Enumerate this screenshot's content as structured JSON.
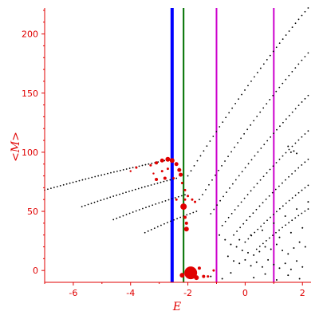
{
  "chart_data": {
    "type": "scatter",
    "title": "",
    "xlabel": "E",
    "ylabel": "<M>",
    "xlim": [
      -7,
      2.3
    ],
    "ylim": [
      -10,
      222
    ],
    "grid": false,
    "x_ticks": [
      -6,
      -4,
      -2,
      0,
      2
    ],
    "y_ticks": [
      0,
      50,
      100,
      150,
      200
    ],
    "x_tick_labels": [
      "-6",
      "-4",
      "-2",
      "0",
      "2"
    ],
    "y_tick_labels": [
      "0",
      "50",
      "100",
      "150",
      "200"
    ],
    "colors": {
      "axis": "#e00000",
      "black_points": "#000000",
      "red_points": "#e00000",
      "line_blue": "#0000ff",
      "line_green": "#007000",
      "line_magenta": "#cc00cc"
    },
    "vertical_lines": [
      {
        "x": -2.55,
        "color": "#0000ff",
        "width": "thick"
      },
      {
        "x": -2.15,
        "color": "#007000",
        "width": "thin"
      },
      {
        "x": -1.0,
        "color": "#cc00cc",
        "width": "thin"
      },
      {
        "x": 1.0,
        "color": "#cc00cc",
        "width": "thin"
      }
    ],
    "black_branches": [
      {
        "x_start": -7.0,
        "y_start": 68,
        "x_end": -2.6,
        "y_end": 94
      },
      {
        "x_start": -5.7,
        "y_start": 54,
        "x_end": -2.4,
        "y_end": 78
      },
      {
        "x_start": -4.6,
        "y_start": 43,
        "x_end": -2.1,
        "y_end": 64
      },
      {
        "x_start": -3.5,
        "y_start": 32,
        "x_end": -1.7,
        "y_end": 50
      },
      {
        "x_start": -2.0,
        "y_start": 80,
        "x_end": 2.2,
        "y_end": 222
      },
      {
        "x_start": -1.6,
        "y_start": 60,
        "x_end": 2.2,
        "y_end": 184
      },
      {
        "x_start": -1.2,
        "y_start": 48,
        "x_end": 2.2,
        "y_end": 148
      },
      {
        "x_start": -0.8,
        "y_start": 38,
        "x_end": 2.2,
        "y_end": 118
      },
      {
        "x_start": -0.4,
        "y_start": 30,
        "x_end": 2.2,
        "y_end": 94
      },
      {
        "x_start": 0.0,
        "y_start": 24,
        "x_end": 2.2,
        "y_end": 72
      },
      {
        "x_start": 0.4,
        "y_start": 18,
        "x_end": 2.2,
        "y_end": 52
      }
    ],
    "red_points": [
      {
        "x": -3.3,
        "y": 89,
        "size": 1.5
      },
      {
        "x": -3.1,
        "y": 91,
        "size": 2
      },
      {
        "x": -2.9,
        "y": 93,
        "size": 2.5
      },
      {
        "x": -2.7,
        "y": 94,
        "size": 3
      },
      {
        "x": -2.55,
        "y": 93,
        "size": 3
      },
      {
        "x": -2.4,
        "y": 90,
        "size": 2.5
      },
      {
        "x": -2.3,
        "y": 85,
        "size": 2.5
      },
      {
        "x": -2.25,
        "y": 81,
        "size": 2.5
      },
      {
        "x": -2.7,
        "y": 86,
        "size": 1.5
      },
      {
        "x": -2.9,
        "y": 84,
        "size": 1.5
      },
      {
        "x": -3.2,
        "y": 82,
        "size": 1.2
      },
      {
        "x": -3.8,
        "y": 87,
        "size": 1.5
      },
      {
        "x": -4.0,
        "y": 84,
        "size": 1.2
      },
      {
        "x": -2.8,
        "y": 78,
        "size": 2
      },
      {
        "x": -3.1,
        "y": 77,
        "size": 2
      },
      {
        "x": -2.5,
        "y": 78,
        "size": 1.5
      },
      {
        "x": -2.2,
        "y": 74,
        "size": 1.5
      },
      {
        "x": -2.1,
        "y": 68,
        "size": 1.5
      },
      {
        "x": -2.0,
        "y": 63,
        "size": 1.5
      },
      {
        "x": -1.85,
        "y": 60,
        "size": 1.5
      },
      {
        "x": -1.75,
        "y": 58,
        "size": 1.5
      },
      {
        "x": -2.4,
        "y": 60,
        "size": 1.5
      },
      {
        "x": -2.1,
        "y": 60,
        "size": 1.5
      },
      {
        "x": -2.15,
        "y": 54,
        "size": 4
      },
      {
        "x": -2.1,
        "y": 45,
        "size": 2
      },
      {
        "x": -2.05,
        "y": 40,
        "size": 2
      },
      {
        "x": -2.05,
        "y": 35,
        "size": 3
      },
      {
        "x": -1.9,
        "y": -2,
        "size": 8
      },
      {
        "x": -2.2,
        "y": -4,
        "size": 3
      },
      {
        "x": -1.7,
        "y": -6,
        "size": 3
      },
      {
        "x": -1.45,
        "y": -5,
        "size": 2
      },
      {
        "x": -1.6,
        "y": 2,
        "size": 2
      },
      {
        "x": -1.3,
        "y": -5,
        "size": 1.5
      },
      {
        "x": -1.1,
        "y": 0,
        "size": 1.5
      }
    ],
    "black_scatter": [
      {
        "x": -0.9,
        "y": 30
      },
      {
        "x": -0.7,
        "y": 26
      },
      {
        "x": -0.5,
        "y": 22
      },
      {
        "x": -0.3,
        "y": 20
      },
      {
        "x": -0.1,
        "y": 17
      },
      {
        "x": 0.1,
        "y": 15
      },
      {
        "x": 0.3,
        "y": 13
      },
      {
        "x": 0.5,
        "y": 16
      },
      {
        "x": 0.7,
        "y": 20
      },
      {
        "x": 0.9,
        "y": 18
      },
      {
        "x": 1.1,
        "y": 22
      },
      {
        "x": 1.3,
        "y": 17
      },
      {
        "x": 1.5,
        "y": 14
      },
      {
        "x": 1.7,
        "y": 19
      },
      {
        "x": 1.9,
        "y": 24
      },
      {
        "x": 2.1,
        "y": 20
      },
      {
        "x": -0.6,
        "y": 12
      },
      {
        "x": -0.4,
        "y": 8
      },
      {
        "x": -0.2,
        "y": 6
      },
      {
        "x": 0.0,
        "y": 9
      },
      {
        "x": 0.2,
        "y": 4
      },
      {
        "x": 0.4,
        "y": 7
      },
      {
        "x": 0.6,
        "y": 3
      },
      {
        "x": 0.8,
        "y": 9
      },
      {
        "x": 1.0,
        "y": 5
      },
      {
        "x": 1.2,
        "y": 2
      },
      {
        "x": 1.4,
        "y": 6
      },
      {
        "x": 1.6,
        "y": 1
      },
      {
        "x": 1.8,
        "y": 8
      },
      {
        "x": 2.0,
        "y": 3
      },
      {
        "x": -1.2,
        "y": -5
      },
      {
        "x": -0.8,
        "y": -7
      },
      {
        "x": -0.5,
        "y": -2
      },
      {
        "x": 0.3,
        "y": -6
      },
      {
        "x": 0.7,
        "y": -3
      },
      {
        "x": 1.1,
        "y": -8
      },
      {
        "x": 1.5,
        "y": -4
      },
      {
        "x": 1.9,
        "y": -7
      },
      {
        "x": -0.2,
        "y": 26
      },
      {
        "x": 0.2,
        "y": 30
      },
      {
        "x": 0.6,
        "y": 34
      },
      {
        "x": 1.0,
        "y": 40
      },
      {
        "x": 1.4,
        "y": 46
      },
      {
        "x": 1.8,
        "y": 52
      },
      {
        "x": 2.2,
        "y": 58
      },
      {
        "x": 1.2,
        "y": 28
      },
      {
        "x": 1.6,
        "y": 32
      },
      {
        "x": 2.0,
        "y": 36
      },
      {
        "x": 1.5,
        "y": 105
      },
      {
        "x": 1.6,
        "y": 100
      },
      {
        "x": 1.7,
        "y": 101
      },
      {
        "x": 1.8,
        "y": 99
      }
    ]
  }
}
